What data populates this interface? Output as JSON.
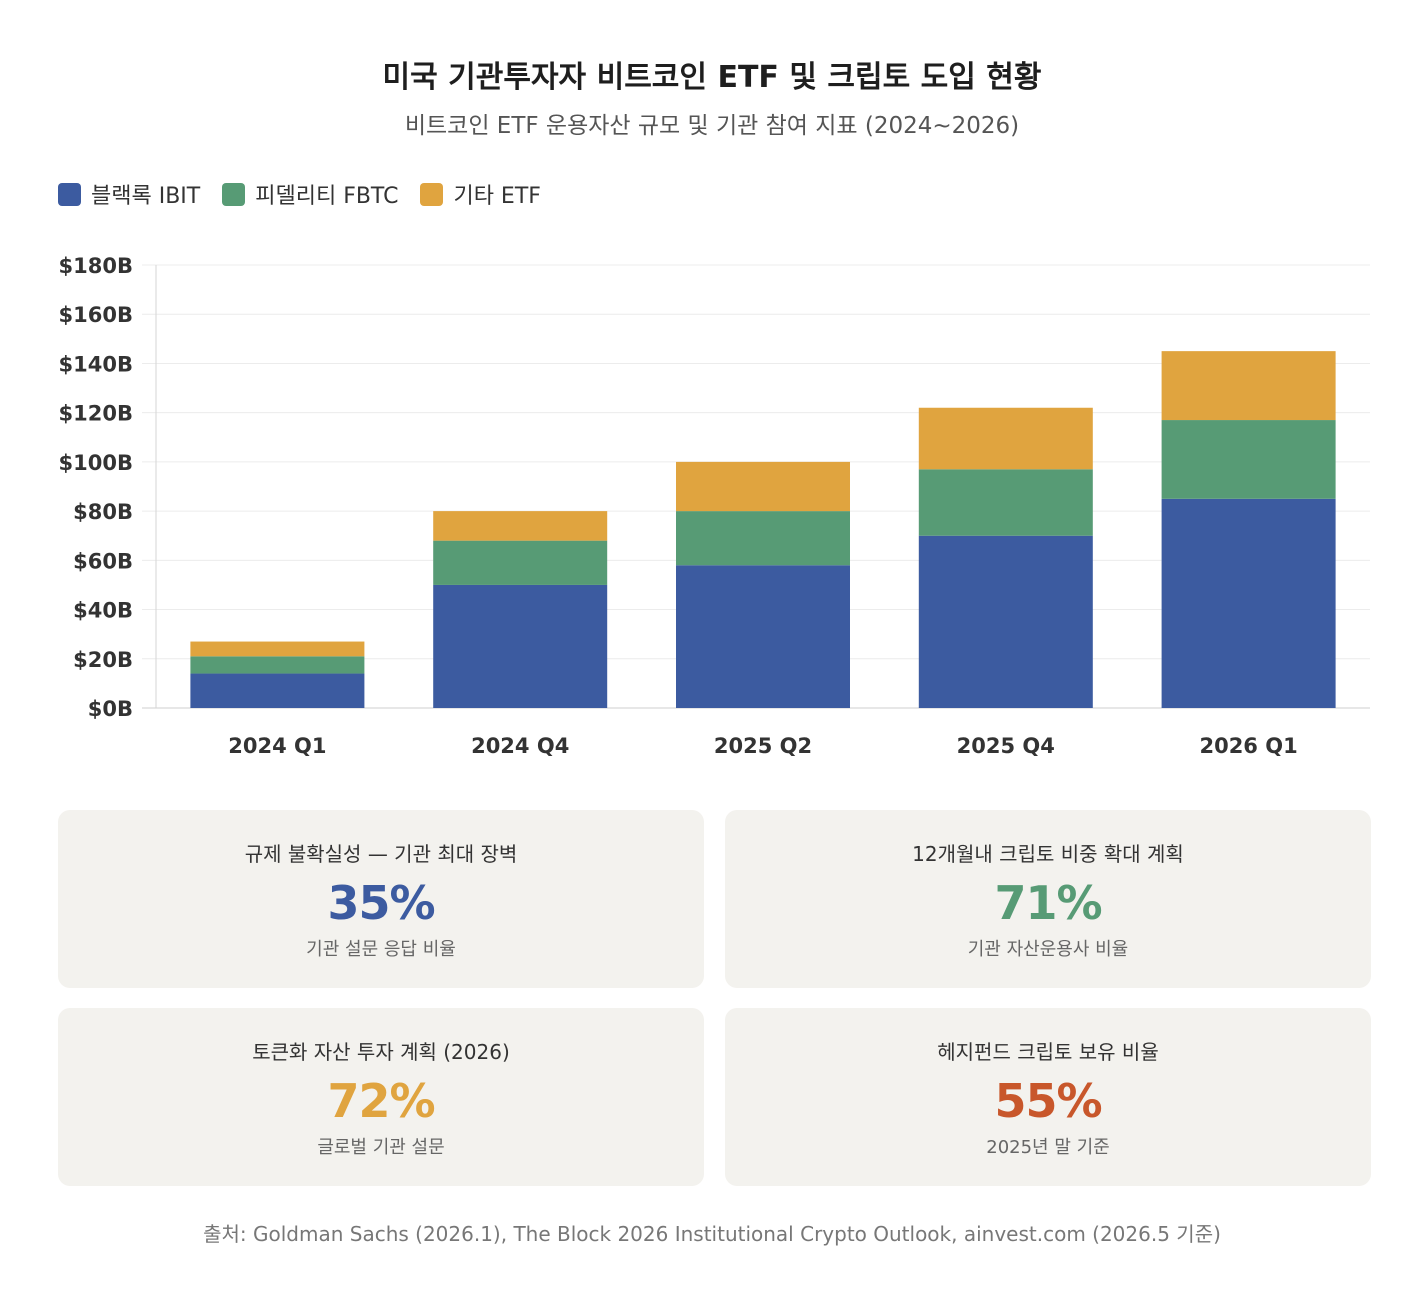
{
  "header": {
    "title": "미국 기관투자자 비트코인 ETF 및 크립토 도입 현황",
    "subtitle": "비트코인 ETF 운용자산 규모 및 기관 참여 지표 (2024~2026)"
  },
  "chart_data": {
    "type": "bar",
    "stacked": true,
    "categories": [
      "2024 Q1",
      "2024 Q4",
      "2025 Q2",
      "2025 Q4",
      "2026 Q1"
    ],
    "series": [
      {
        "name": "블랙록 IBIT",
        "color": "#3c5ba0",
        "values": [
          14,
          50,
          58,
          70,
          85
        ]
      },
      {
        "name": "피델리티 FBTC",
        "color": "#579b75",
        "values": [
          7,
          18,
          22,
          27,
          32
        ]
      },
      {
        "name": "기타 ETF",
        "color": "#e0a43f",
        "values": [
          6,
          12,
          20,
          25,
          28
        ]
      }
    ],
    "ylim": [
      0,
      180
    ],
    "yticks": [
      0,
      20,
      40,
      60,
      80,
      100,
      120,
      140,
      160,
      180
    ],
    "ytick_labels": [
      "$0B",
      "$20B",
      "$40B",
      "$60B",
      "$80B",
      "$100B",
      "$120B",
      "$140B",
      "$160B",
      "$180B"
    ],
    "legend_position": "top-left",
    "grid": true
  },
  "cards": [
    {
      "label": "규제 불확실성 — 기관 최대 장벽",
      "value": "35%",
      "note": "기관 설문 응답 비율",
      "color": "#3c5ba0"
    },
    {
      "label": "12개월내 크립토 비중 확대 계획",
      "value": "71%",
      "note": "기관 자산운용사 비율",
      "color": "#579b75"
    },
    {
      "label": "토큰화 자산 투자 계획 (2026)",
      "value": "72%",
      "note": "글로벌 기관 설문",
      "color": "#e0a43f"
    },
    {
      "label": "헤지펀드 크립토 보유 비율",
      "value": "55%",
      "note": "2025년 말 기준",
      "color": "#c8572b"
    }
  ],
  "source": "출처: Goldman Sachs (2026.1), The Block 2026 Institutional Crypto Outlook, ainvest.com (2026.5 기준)"
}
